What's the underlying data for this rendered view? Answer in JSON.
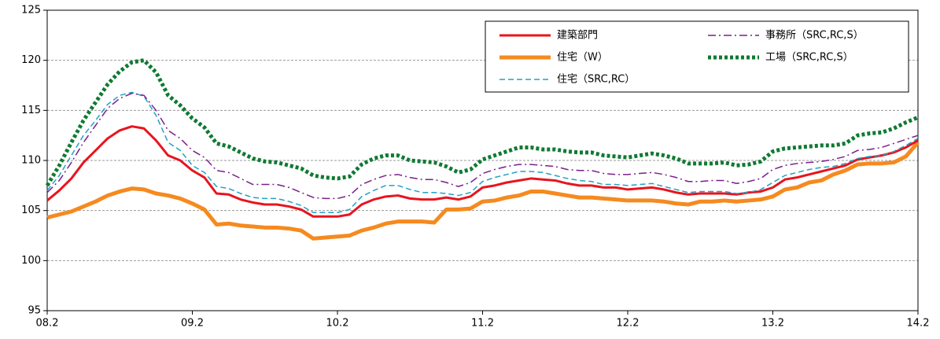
{
  "chart_data": {
    "type": "line",
    "categories": [
      "08.2",
      null,
      null,
      null,
      null,
      null,
      null,
      null,
      null,
      null,
      null,
      null,
      "09.2",
      null,
      null,
      null,
      null,
      null,
      null,
      null,
      null,
      null,
      null,
      null,
      "10.2",
      null,
      null,
      null,
      null,
      null,
      null,
      null,
      null,
      null,
      null,
      null,
      "11.2",
      null,
      null,
      null,
      null,
      null,
      null,
      null,
      null,
      null,
      null,
      null,
      "12.2",
      null,
      null,
      null,
      null,
      null,
      null,
      null,
      null,
      null,
      null,
      null,
      "13.2",
      null,
      null,
      null,
      null,
      null,
      null,
      null,
      null,
      null,
      null,
      null,
      "14.2"
    ],
    "series": [
      {
        "name": "建築部門",
        "color": "#e8141e",
        "line_style": "solid",
        "values": [
          106.0,
          107,
          108.2,
          109.8,
          111,
          112.2,
          113,
          113.4,
          113.2,
          112,
          110.5,
          110,
          109,
          108.3,
          106.7,
          106.6,
          106.1,
          105.8,
          105.6,
          105.6,
          105.4,
          105.1,
          104.4,
          104.4,
          104.4,
          104.6,
          105.6,
          106.1,
          106.4,
          106.5,
          106.2,
          106.1,
          106.1,
          106.3,
          106.1,
          106.4,
          107.3,
          107.5,
          107.8,
          108.0,
          108.2,
          108.1,
          108.0,
          107.7,
          107.5,
          107.5,
          107.3,
          107.3,
          107.1,
          107.2,
          107.3,
          107.1,
          106.8,
          106.6,
          106.7,
          106.7,
          106.7,
          106.6,
          106.8,
          106.9,
          107.3,
          108.1,
          108.3,
          108.6,
          108.9,
          109.2,
          109.5,
          110.1,
          110.3,
          110.5,
          110.8,
          111.3,
          112.0
        ]
      },
      {
        "name": "事務所（SRC,RC,S）",
        "color": "#7a1f8c",
        "line_style": "dashdot",
        "values": [
          106.8,
          108,
          109.8,
          111.8,
          113.5,
          115.2,
          116.2,
          116.7,
          116.5,
          115,
          113,
          112.2,
          111,
          110.3,
          109,
          108.8,
          108.2,
          107.6,
          107.6,
          107.6,
          107.3,
          106.8,
          106.3,
          106.2,
          106.2,
          106.5,
          107.6,
          108.1,
          108.5,
          108.6,
          108.3,
          108.1,
          108.1,
          107.8,
          107.4,
          107.8,
          108.7,
          109.1,
          109.4,
          109.6,
          109.6,
          109.5,
          109.4,
          109.1,
          109.0,
          109.0,
          108.7,
          108.6,
          108.6,
          108.7,
          108.8,
          108.6,
          108.3,
          107.9,
          107.9,
          108.0,
          108.0,
          107.7,
          107.9,
          108.2,
          109.1,
          109.5,
          109.7,
          109.8,
          109.9,
          110.1,
          110.4,
          111.0,
          111.1,
          111.3,
          111.7,
          112.1,
          112.5
        ]
      },
      {
        "name": "住宅（W）",
        "color": "#f58a1f",
        "line_style": "thick",
        "values": [
          104.3,
          104.6,
          104.9,
          105.4,
          105.9,
          106.5,
          106.9,
          107.2,
          107.1,
          106.7,
          106.5,
          106.2,
          105.7,
          105.1,
          103.6,
          103.7,
          103.5,
          103.4,
          103.3,
          103.3,
          103.2,
          103.0,
          102.2,
          102.3,
          102.4,
          102.5,
          103.0,
          103.3,
          103.7,
          103.9,
          103.9,
          103.9,
          103.8,
          105.1,
          105.1,
          105.2,
          105.9,
          106.0,
          106.3,
          106.5,
          106.9,
          106.9,
          106.7,
          106.5,
          106.3,
          106.3,
          106.2,
          106.1,
          106.0,
          106.0,
          106.0,
          105.9,
          105.7,
          105.6,
          105.9,
          105.9,
          106.0,
          105.9,
          106.0,
          106.1,
          106.4,
          107.1,
          107.3,
          107.8,
          108.0,
          108.6,
          109.0,
          109.6,
          109.7,
          109.7,
          109.8,
          110.4,
          111.8
        ]
      },
      {
        "name": "工場（SRC,RC,S）",
        "color": "#0f7a32",
        "line_style": "dotted",
        "values": [
          107.5,
          109.5,
          111.8,
          114,
          115.8,
          117.6,
          118.9,
          119.8,
          120.0,
          118.8,
          116.5,
          115.5,
          114.2,
          113.3,
          111.7,
          111.4,
          110.8,
          110.2,
          109.9,
          109.8,
          109.5,
          109.2,
          108.5,
          108.3,
          108.2,
          108.4,
          109.6,
          110.2,
          110.5,
          110.5,
          110.0,
          109.9,
          109.8,
          109.4,
          108.8,
          109.1,
          110.1,
          110.5,
          110.9,
          111.3,
          111.3,
          111.1,
          111.1,
          110.9,
          110.8,
          110.8,
          110.5,
          110.4,
          110.3,
          110.5,
          110.7,
          110.5,
          110.2,
          109.7,
          109.7,
          109.7,
          109.8,
          109.5,
          109.6,
          109.9,
          110.9,
          111.2,
          111.3,
          111.4,
          111.5,
          111.5,
          111.7,
          112.5,
          112.7,
          112.8,
          113.2,
          113.8,
          114.3
        ]
      },
      {
        "name": "住宅（SRC,RC）",
        "color": "#22a0c8",
        "line_style": "dashed",
        "values": [
          107,
          108.5,
          110.5,
          112.5,
          114,
          115.6,
          116.5,
          116.8,
          116.4,
          114.5,
          111.8,
          111,
          109.5,
          108.8,
          107.4,
          107.2,
          106.7,
          106.3,
          106.2,
          106.2,
          105.9,
          105.5,
          104.8,
          104.8,
          104.8,
          105.1,
          106.4,
          107.0,
          107.5,
          107.5,
          107.1,
          106.8,
          106.8,
          106.7,
          106.5,
          106.8,
          107.9,
          108.3,
          108.6,
          108.9,
          108.9,
          108.8,
          108.5,
          108.2,
          108.0,
          107.9,
          107.6,
          107.6,
          107.5,
          107.6,
          107.7,
          107.4,
          107.1,
          106.8,
          106.9,
          106.9,
          106.9,
          106.7,
          106.8,
          107.1,
          107.8,
          108.5,
          108.8,
          109.1,
          109.3,
          109.4,
          109.7,
          110.2,
          110.4,
          110.5,
          110.9,
          111.5,
          112.2
        ]
      }
    ],
    "ylim": [
      95,
      125
    ],
    "yticks": [
      95,
      100,
      105,
      110,
      115,
      120,
      125
    ],
    "grid": true,
    "legend": "top-right"
  }
}
